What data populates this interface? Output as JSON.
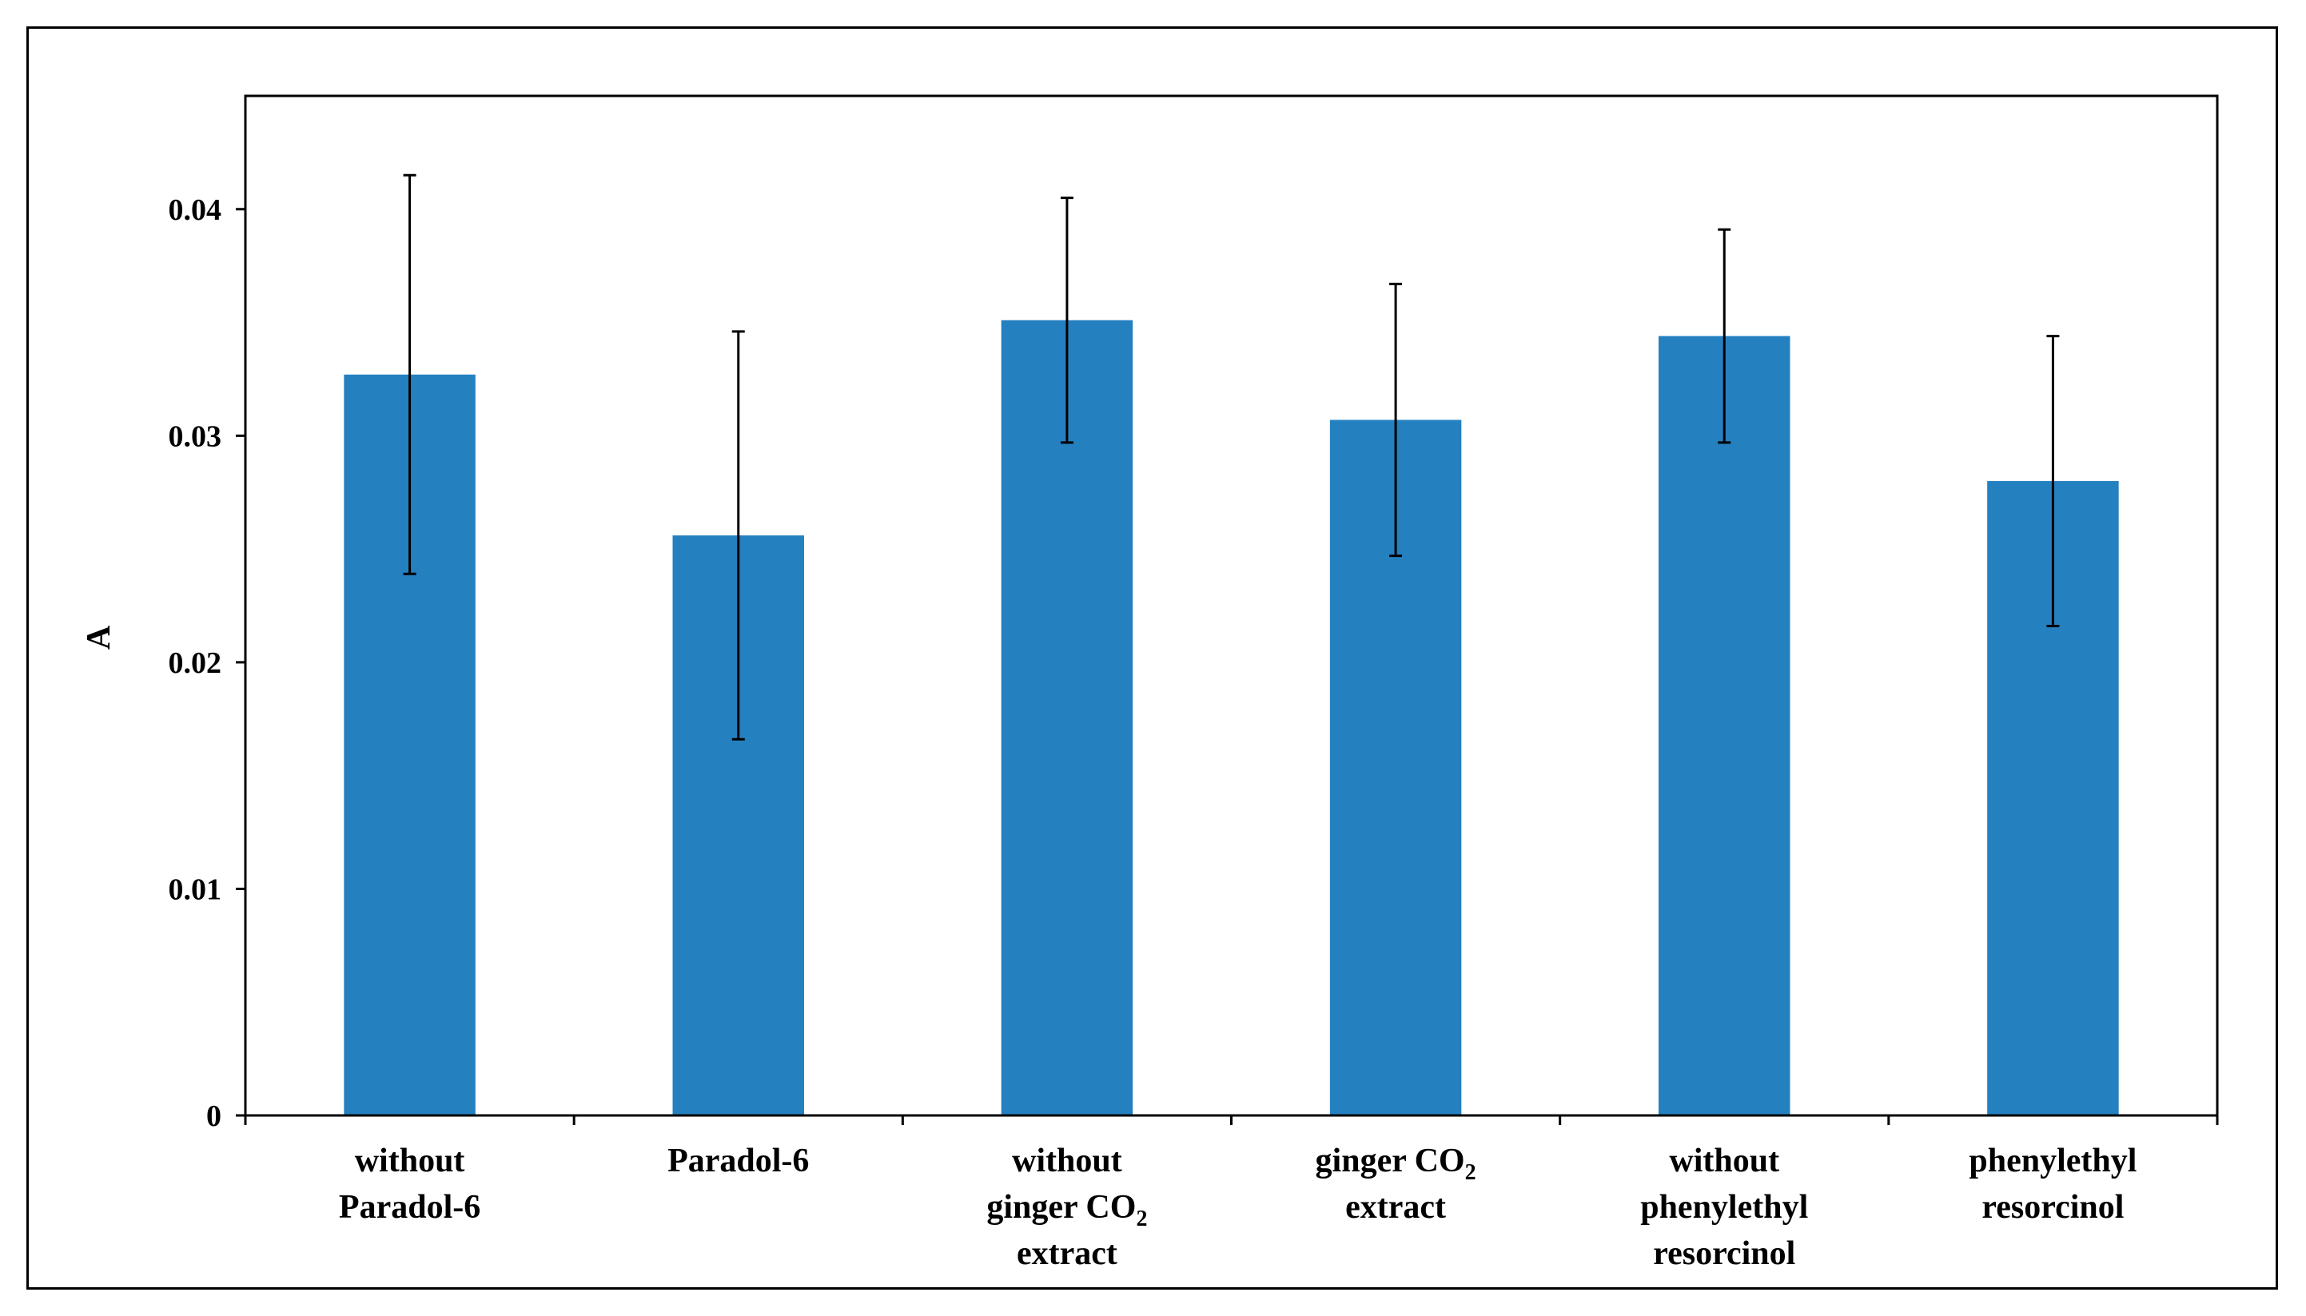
{
  "chart_data": {
    "type": "bar",
    "title": "",
    "xlabel": "",
    "ylabel": "A",
    "ylim": [
      0,
      0.045
    ],
    "yticks": [
      "0",
      "0.01",
      "0.02",
      "0.03",
      "0.04"
    ],
    "ytick_values": [
      0,
      0.01,
      0.02,
      0.03,
      0.04
    ],
    "grid": false,
    "legend": "none",
    "bar_color": "#2580C0",
    "categories": [
      {
        "lines": [
          {
            "text": "without"
          },
          {
            "text": "Paradol-6"
          }
        ]
      },
      {
        "lines": [
          {
            "text": "Paradol-6"
          }
        ]
      },
      {
        "lines": [
          {
            "text": "without"
          },
          {
            "text": "ginger CO",
            "sub": "2"
          },
          {
            "text": "extract"
          }
        ]
      },
      {
        "lines": [
          {
            "text": "ginger CO",
            "sub": "2"
          },
          {
            "text": "extract"
          }
        ]
      },
      {
        "lines": [
          {
            "text": "without"
          },
          {
            "text": "phenylethyl"
          },
          {
            "text": "resorcinol"
          }
        ]
      },
      {
        "lines": [
          {
            "text": "phenylethyl"
          },
          {
            "text": "resorcinol"
          }
        ]
      }
    ],
    "values": [
      0.0327,
      0.0256,
      0.0351,
      0.0307,
      0.0344,
      0.028
    ],
    "errors": [
      0.0088,
      0.009,
      0.0054,
      0.006,
      0.0047,
      0.0064
    ]
  }
}
